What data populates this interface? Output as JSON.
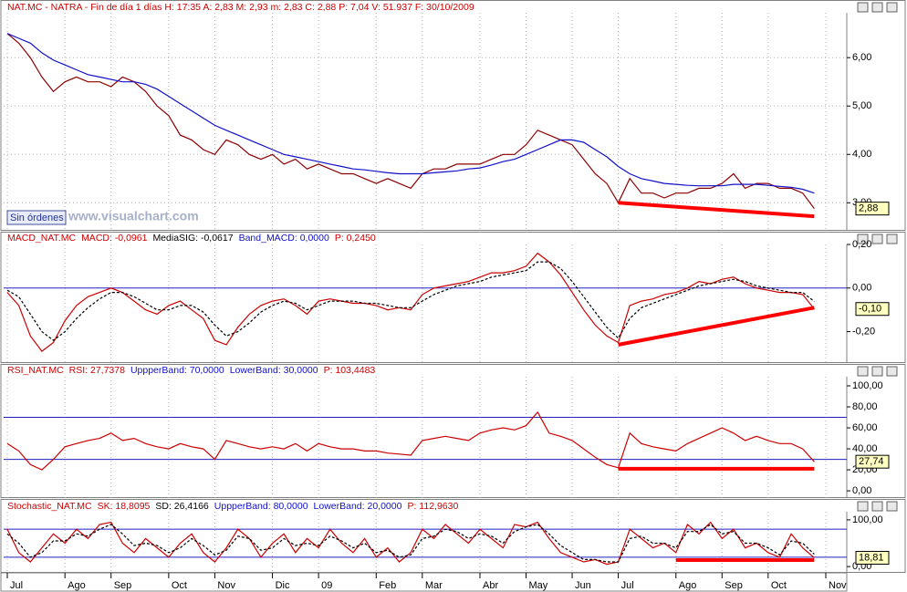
{
  "orders_label": "Sin órdenes",
  "watermark": "www.visualchart.com",
  "x_axis": {
    "xlim": [
      0,
      71
    ],
    "xticks": [
      {
        "value": 0,
        "label": "Jul"
      },
      {
        "value": 5,
        "label": "Ago"
      },
      {
        "value": 9,
        "label": "Sep"
      },
      {
        "value": 14,
        "label": "Oct"
      },
      {
        "value": 18,
        "label": "Nov"
      },
      {
        "value": 23,
        "label": "Dic"
      },
      {
        "value": 27,
        "label": "09"
      },
      {
        "value": 32,
        "label": "Feb"
      },
      {
        "value": 36,
        "label": "Mar"
      },
      {
        "value": 41,
        "label": "Abr"
      },
      {
        "value": 45,
        "label": "May"
      },
      {
        "value": 49,
        "label": "Jun"
      },
      {
        "value": 53,
        "label": "Jul"
      },
      {
        "value": 58,
        "label": "Ago"
      },
      {
        "value": 62,
        "label": "Sep"
      },
      {
        "value": 66,
        "label": "Oct"
      },
      {
        "value": 71,
        "label": "Nov"
      }
    ]
  },
  "chart_data": [
    {
      "type": "line",
      "header": [
        {
          "text": "NAT.MC - NATRA - Fin de día 1 días H: 17:35  A: 2,83  M: 2,93  m: 2,83  C: 2,88  P: 7,04  V: 51.937  F: 30/10/2009",
          "color": "#cc0000"
        }
      ],
      "ylim": [
        2.44,
        6.89
      ],
      "grid": true,
      "yticks": [
        {
          "value": 3,
          "label": "3,00"
        },
        {
          "value": 4,
          "label": "4,00"
        },
        {
          "value": 5,
          "label": "5,00"
        },
        {
          "value": 6,
          "label": "6,00"
        }
      ],
      "series": [
        {
          "name": "NAT.MC",
          "color": "#8b0000",
          "dash": false,
          "values": [
            6.5,
            6.3,
            6.0,
            5.6,
            5.3,
            5.5,
            5.6,
            5.5,
            5.5,
            5.4,
            5.6,
            5.5,
            5.3,
            5.0,
            4.8,
            4.4,
            4.3,
            4.1,
            4.0,
            4.3,
            4.2,
            4.0,
            3.9,
            4.0,
            3.8,
            3.9,
            3.7,
            3.8,
            3.7,
            3.6,
            3.6,
            3.5,
            3.4,
            3.5,
            3.4,
            3.3,
            3.6,
            3.7,
            3.7,
            3.8,
            3.8,
            3.8,
            3.9,
            4.0,
            4.0,
            4.2,
            4.5,
            4.4,
            4.3,
            4.2,
            3.9,
            3.6,
            3.4,
            3.0,
            3.5,
            3.2,
            3.2,
            3.1,
            3.2,
            3.2,
            3.3,
            3.3,
            3.4,
            3.6,
            3.3,
            3.4,
            3.4,
            3.3,
            3.3,
            3.2,
            2.88
          ]
        },
        {
          "name": "Media",
          "color": "#1010c8",
          "dash": false,
          "values": [
            6.5,
            6.4,
            6.3,
            6.1,
            5.95,
            5.85,
            5.75,
            5.65,
            5.6,
            5.55,
            5.5,
            5.5,
            5.45,
            5.35,
            5.2,
            5.05,
            4.9,
            4.75,
            4.6,
            4.5,
            4.4,
            4.3,
            4.2,
            4.1,
            4.0,
            3.95,
            3.9,
            3.85,
            3.8,
            3.75,
            3.7,
            3.68,
            3.65,
            3.62,
            3.6,
            3.6,
            3.6,
            3.62,
            3.64,
            3.66,
            3.7,
            3.72,
            3.78,
            3.85,
            3.9,
            4.0,
            4.1,
            4.2,
            4.3,
            4.3,
            4.25,
            4.1,
            3.95,
            3.75,
            3.6,
            3.5,
            3.45,
            3.4,
            3.38,
            3.36,
            3.35,
            3.35,
            3.35,
            3.38,
            3.38,
            3.38,
            3.36,
            3.34,
            3.32,
            3.28,
            3.2
          ]
        }
      ],
      "bands": [],
      "trendline": {
        "x": [
          53,
          70
        ],
        "values": [
          3.0,
          2.72
        ],
        "color": "#ff0000"
      },
      "last_label": "2,88"
    },
    {
      "type": "line",
      "header": [
        {
          "text": "MACD_NAT.MC",
          "color": "#cc0000"
        },
        {
          "text": "MACD: -0,0961",
          "color": "#cc0000"
        },
        {
          "text": "MediaSIG: -0,0617",
          "color": "#000000"
        },
        {
          "text": "Band_MACD: 0,0000",
          "color": "#1010c8"
        },
        {
          "text": "P: 0,2450",
          "color": "#cc0000"
        }
      ],
      "ylim": [
        -0.34,
        0.2
      ],
      "grid": false,
      "yticks": [
        {
          "value": -0.2,
          "label": "-0,20"
        },
        {
          "value": 0,
          "label": "0,00"
        },
        {
          "value": 0.2,
          "label": "0,20"
        }
      ],
      "series": [
        {
          "name": "MACD",
          "color": "#cc0000",
          "dash": false,
          "values": [
            -0.02,
            -0.08,
            -0.22,
            -0.29,
            -0.25,
            -0.15,
            -0.08,
            -0.04,
            -0.02,
            0.0,
            -0.02,
            -0.06,
            -0.1,
            -0.12,
            -0.08,
            -0.06,
            -0.1,
            -0.14,
            -0.24,
            -0.26,
            -0.18,
            -0.12,
            -0.08,
            -0.06,
            -0.05,
            -0.08,
            -0.12,
            -0.06,
            -0.05,
            -0.06,
            -0.07,
            -0.07,
            -0.08,
            -0.1,
            -0.09,
            -0.1,
            -0.03,
            0.0,
            0.01,
            0.02,
            0.03,
            0.05,
            0.07,
            0.07,
            0.08,
            0.1,
            0.16,
            0.12,
            0.06,
            -0.02,
            -0.1,
            -0.17,
            -0.22,
            -0.25,
            -0.08,
            -0.06,
            -0.05,
            -0.03,
            -0.02,
            0.0,
            0.03,
            0.02,
            0.04,
            0.05,
            0.02,
            0.0,
            -0.01,
            -0.02,
            -0.02,
            -0.03,
            -0.0961
          ]
        },
        {
          "name": "MediaSIG",
          "color": "#000000",
          "dash": true,
          "values": [
            -0.01,
            -0.04,
            -0.12,
            -0.2,
            -0.24,
            -0.2,
            -0.14,
            -0.09,
            -0.05,
            -0.02,
            -0.02,
            -0.04,
            -0.07,
            -0.1,
            -0.1,
            -0.08,
            -0.08,
            -0.11,
            -0.17,
            -0.22,
            -0.2,
            -0.16,
            -0.11,
            -0.08,
            -0.06,
            -0.07,
            -0.1,
            -0.08,
            -0.06,
            -0.06,
            -0.06,
            -0.07,
            -0.07,
            -0.08,
            -0.09,
            -0.09,
            -0.06,
            -0.03,
            -0.01,
            0.01,
            0.02,
            0.03,
            0.05,
            0.06,
            0.07,
            0.08,
            0.12,
            0.12,
            0.09,
            0.03,
            -0.04,
            -0.11,
            -0.18,
            -0.23,
            -0.14,
            -0.09,
            -0.07,
            -0.05,
            -0.03,
            -0.01,
            0.01,
            0.02,
            0.03,
            0.04,
            0.03,
            0.01,
            0.0,
            -0.01,
            -0.02,
            -0.02,
            -0.0617
          ]
        }
      ],
      "bands": [
        0
      ],
      "trendline": {
        "x": [
          53,
          70
        ],
        "values": [
          -0.26,
          -0.09
        ],
        "color": "#ff0000"
      },
      "last_label": "-0,10"
    },
    {
      "type": "line",
      "header": [
        {
          "text": "RSI_NAT.MC",
          "color": "#cc0000"
        },
        {
          "text": "RSI: 27,7378",
          "color": "#cc0000"
        },
        {
          "text": "UppperBand: 70,0000",
          "color": "#1010c8"
        },
        {
          "text": "LowerBand: 30,0000",
          "color": "#1010c8"
        },
        {
          "text": "P: 103,4483",
          "color": "#cc0000"
        }
      ],
      "ylim": [
        -6,
        108.7
      ],
      "grid": false,
      "yticks": [
        {
          "value": 0,
          "label": "0,00"
        },
        {
          "value": 20,
          "label": "20,00"
        },
        {
          "value": 40,
          "label": "40,00"
        },
        {
          "value": 60,
          "label": "60,00"
        },
        {
          "value": 80,
          "label": "80,00"
        },
        {
          "value": 100,
          "label": "100,00"
        }
      ],
      "series": [
        {
          "name": "RSI",
          "color": "#cc0000",
          "dash": false,
          "values": [
            45,
            38,
            25,
            20,
            30,
            42,
            45,
            48,
            50,
            55,
            48,
            50,
            45,
            42,
            40,
            45,
            42,
            40,
            30,
            48,
            45,
            42,
            40,
            42,
            40,
            45,
            38,
            45,
            42,
            40,
            40,
            38,
            38,
            36,
            35,
            34,
            48,
            50,
            52,
            50,
            48,
            55,
            58,
            60,
            58,
            62,
            75,
            55,
            52,
            48,
            40,
            32,
            25,
            22,
            55,
            45,
            42,
            40,
            38,
            45,
            50,
            55,
            60,
            55,
            48,
            52,
            48,
            45,
            45,
            40,
            27.7378
          ]
        }
      ],
      "bands": [
        70,
        30
      ],
      "trendline": {
        "x": [
          53,
          70
        ],
        "values": [
          21,
          21
        ],
        "color": "#ff0000"
      },
      "last_label": "27,74"
    },
    {
      "type": "line",
      "header": [
        {
          "text": "Stochastic_NAT.MC",
          "color": "#cc0000"
        },
        {
          "text": "SK: 18,8095",
          "color": "#cc0000"
        },
        {
          "text": "SD: 26,4166",
          "color": "#000000"
        },
        {
          "text": "UppperBand: 80,0000",
          "color": "#1010c8"
        },
        {
          "text": "LowerBand: 20,0000",
          "color": "#1010c8"
        },
        {
          "text": "P: 112,9630",
          "color": "#cc0000"
        }
      ],
      "ylim": [
        -11.5,
        113.5
      ],
      "grid": false,
      "yticks": [
        {
          "value": 0,
          "label": "0,00"
        },
        {
          "value": 100,
          "label": "100,00"
        }
      ],
      "series": [
        {
          "name": "SK",
          "color": "#cc0000",
          "dash": false,
          "values": [
            80,
            30,
            10,
            40,
            70,
            50,
            80,
            60,
            90,
            95,
            50,
            30,
            60,
            40,
            20,
            50,
            70,
            30,
            10,
            40,
            80,
            60,
            20,
            50,
            70,
            30,
            60,
            40,
            80,
            50,
            30,
            60,
            20,
            40,
            10,
            30,
            80,
            60,
            90,
            70,
            50,
            80,
            60,
            40,
            90,
            85,
            95,
            60,
            30,
            20,
            10,
            15,
            5,
            10,
            80,
            60,
            40,
            50,
            30,
            90,
            70,
            95,
            60,
            80,
            40,
            50,
            30,
            20,
            70,
            40,
            18.8095
          ]
        },
        {
          "name": "SD",
          "color": "#000000",
          "dash": true,
          "values": [
            70,
            50,
            20,
            30,
            55,
            55,
            70,
            65,
            80,
            90,
            70,
            45,
            50,
            45,
            30,
            40,
            60,
            45,
            25,
            35,
            65,
            60,
            35,
            40,
            60,
            45,
            50,
            45,
            65,
            55,
            40,
            50,
            30,
            35,
            20,
            25,
            60,
            65,
            80,
            75,
            60,
            70,
            65,
            50,
            75,
            85,
            90,
            70,
            45,
            30,
            15,
            15,
            10,
            10,
            60,
            65,
            50,
            50,
            40,
            75,
            75,
            90,
            70,
            75,
            50,
            50,
            40,
            25,
            55,
            50,
            26.4166
          ]
        }
      ],
      "bands": [
        80,
        20
      ],
      "trendline": {
        "x": [
          58,
          70
        ],
        "values": [
          14,
          14
        ],
        "color": "#ff0000"
      },
      "last_label": "18,81"
    }
  ]
}
